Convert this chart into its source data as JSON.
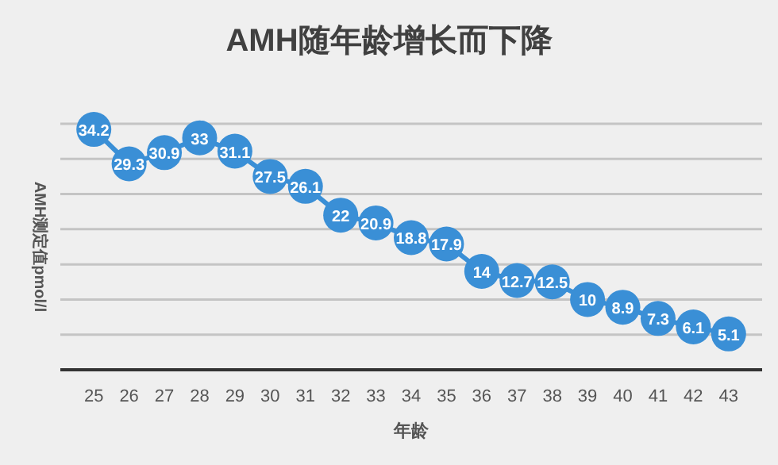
{
  "chart_data": {
    "type": "line",
    "title": "AMH随年龄增长而下降",
    "xlabel": "年龄",
    "ylabel": "AMH测定值pmol/l",
    "categories": [
      "25",
      "26",
      "27",
      "28",
      "29",
      "30",
      "31",
      "32",
      "33",
      "34",
      "35",
      "36",
      "37",
      "38",
      "39",
      "40",
      "41",
      "42",
      "43"
    ],
    "series": [
      {
        "color": "#3a8fd6",
        "values": [
          34.2,
          29.3,
          30.9,
          33,
          31.1,
          27.5,
          26.1,
          22,
          20.9,
          18.8,
          17.9,
          14,
          12.7,
          12.5,
          10,
          8.9,
          7.3,
          6.1,
          5.1
        ]
      }
    ],
    "ylim": [
      0,
      35
    ],
    "yticks": [
      {
        "value": 0,
        "label": null
      },
      {
        "value": 5,
        "label": null
      },
      {
        "value": 10,
        "label": null
      },
      {
        "value": 15,
        "label": null
      },
      {
        "value": 20,
        "label": null
      },
      {
        "value": 25,
        "label": null
      },
      {
        "value": 30,
        "label": null
      },
      {
        "value": 35,
        "label": null
      }
    ],
    "tick_labels": "x",
    "grid": "y",
    "marker": "circle",
    "data_labels": true
  }
}
